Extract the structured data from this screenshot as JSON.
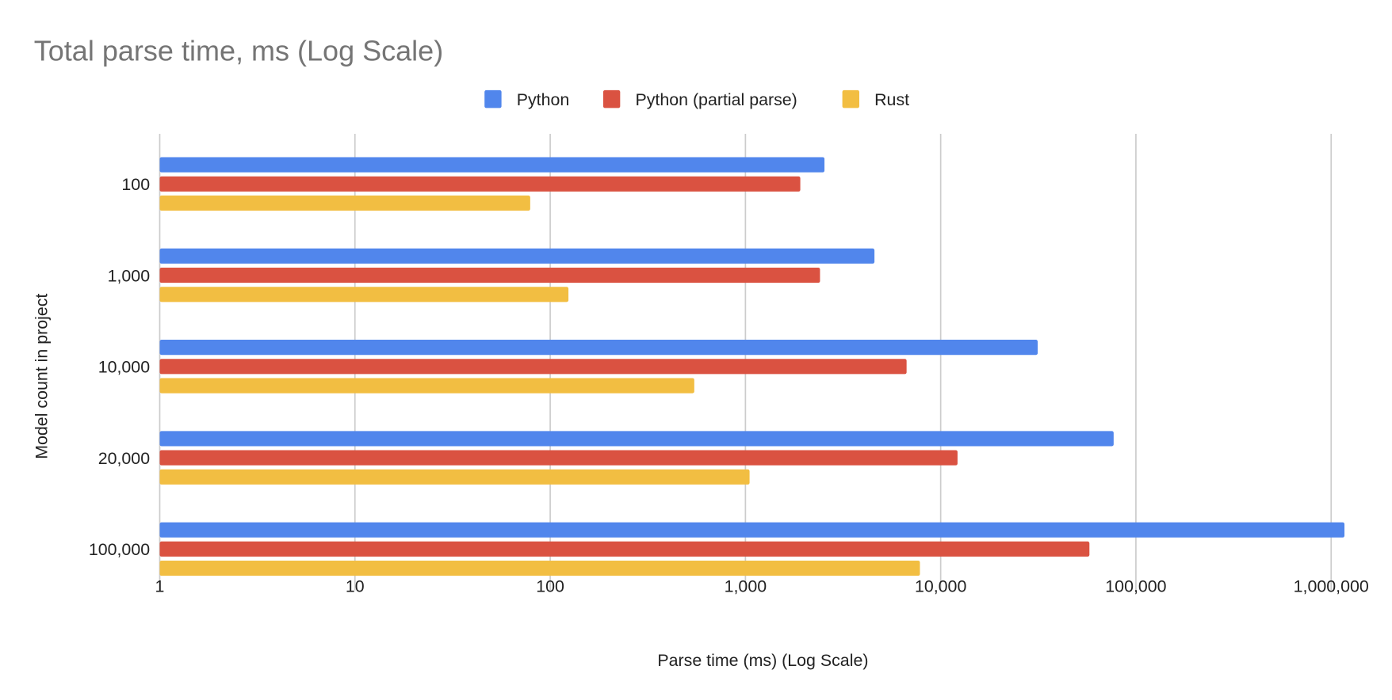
{
  "chart_data": {
    "type": "bar",
    "orientation": "horizontal",
    "title": "Total parse time, ms (Log Scale)",
    "xlabel": "Parse time (ms) (Log Scale)",
    "ylabel": "Model count in project",
    "x_scale": "log",
    "xlim": [
      1,
      1200000
    ],
    "x_ticks": [
      1,
      10,
      100,
      1000,
      10000,
      100000,
      1000000
    ],
    "x_tick_labels": [
      "1",
      "10",
      "100",
      "1,000",
      "10,000",
      "100,000",
      "1,000,000"
    ],
    "grid": true,
    "legend_position": "top",
    "categories": [
      "100",
      "1,000",
      "10,000",
      "20,000",
      "100,000"
    ],
    "series": [
      {
        "name": "Python",
        "color": "#5186EC",
        "values": [
          2540,
          4580,
          31400,
          76900,
          1170000
        ]
      },
      {
        "name": "Python (partial parse)",
        "color": "#DA5241",
        "values": [
          1910,
          2410,
          6690,
          12200,
          57800
        ]
      },
      {
        "name": "Rust",
        "color": "#F2BE42",
        "values": [
          79,
          124,
          547,
          1050,
          7830
        ]
      }
    ]
  }
}
